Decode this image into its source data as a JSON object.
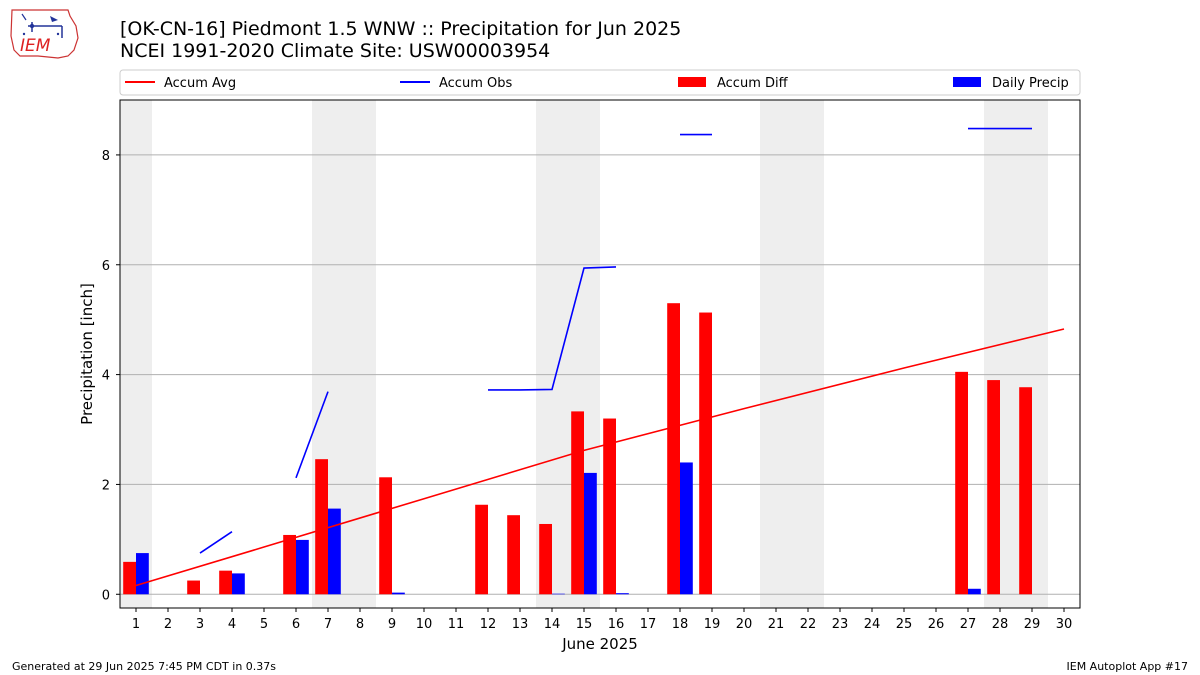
{
  "header": {
    "title_line1": "[OK-CN-16] Piedmont 1.5 WNW :: Precipitation for Jun 2025",
    "title_line2": "NCEI 1991-2020 Climate Site: USW00003954",
    "logo_text": "IEM"
  },
  "footer": {
    "generated": "Generated at 29 Jun 2025 7:45 PM CDT in 0.37s",
    "app": "IEM Autoplot App #17"
  },
  "chart_data": {
    "type": "bar",
    "xlabel": "June 2025",
    "ylabel": "Precipitation [inch]",
    "xlim": [
      0.5,
      30.5
    ],
    "ylim": [
      -0.25,
      9.0
    ],
    "yticks": [
      0,
      2,
      4,
      6,
      8
    ],
    "xticks": [
      1,
      2,
      3,
      4,
      5,
      6,
      7,
      8,
      9,
      10,
      11,
      12,
      13,
      14,
      15,
      16,
      17,
      18,
      19,
      20,
      21,
      22,
      23,
      24,
      25,
      26,
      27,
      28,
      29,
      30
    ],
    "grid": "y",
    "legend_position": "top",
    "weekend_shading": [
      [
        0.5,
        1.5
      ],
      [
        6.5,
        8.5
      ],
      [
        13.5,
        15.5
      ],
      [
        20.5,
        22.5
      ],
      [
        27.5,
        29.5
      ]
    ],
    "legend": [
      {
        "label": "Accum Avg",
        "kind": "line",
        "color": "#ff0000"
      },
      {
        "label": "Accum Obs",
        "kind": "line",
        "color": "#0000ff"
      },
      {
        "label": "Accum Diff",
        "kind": "bar",
        "color": "#ff0000"
      },
      {
        "label": "Daily Precip",
        "kind": "bar",
        "color": "#0000ff"
      }
    ],
    "accum_avg": {
      "color": "#ff0000",
      "x": [
        1,
        5,
        10,
        15,
        20,
        25,
        30
      ],
      "y": [
        0.16,
        0.86,
        1.74,
        2.62,
        3.38,
        4.12,
        4.83
      ]
    },
    "accum_obs_segments": {
      "color": "#0000ff",
      "segments": [
        {
          "x": [
            3,
            4
          ],
          "y": [
            0.75,
            1.14
          ]
        },
        {
          "x": [
            6,
            7
          ],
          "y": [
            2.12,
            3.69
          ]
        },
        {
          "x": [
            12,
            13,
            14,
            15,
            16
          ],
          "y": [
            3.72,
            3.72,
            3.73,
            5.94,
            5.96
          ]
        },
        {
          "x": [
            18,
            19
          ],
          "y": [
            8.37,
            8.37
          ]
        },
        {
          "x": [
            27,
            28,
            29
          ],
          "y": [
            8.48,
            8.48,
            8.48
          ]
        }
      ]
    },
    "accum_diff": {
      "color": "#ff0000",
      "days": [
        1,
        3,
        4,
        6,
        7,
        9,
        12,
        13,
        14,
        15,
        16,
        18,
        19,
        27,
        28,
        29
      ],
      "values": [
        0.59,
        0.25,
        0.43,
        1.08,
        2.46,
        2.13,
        1.63,
        1.44,
        1.28,
        3.33,
        3.2,
        5.3,
        5.13,
        4.05,
        3.9,
        3.77
      ]
    },
    "daily_precip": {
      "color": "#0000ff",
      "days": [
        1,
        4,
        6,
        7,
        9,
        14,
        15,
        16,
        18,
        27
      ],
      "values": [
        0.75,
        0.38,
        0.99,
        1.56,
        0.03,
        0.01,
        2.21,
        0.02,
        2.4,
        0.1
      ]
    }
  }
}
